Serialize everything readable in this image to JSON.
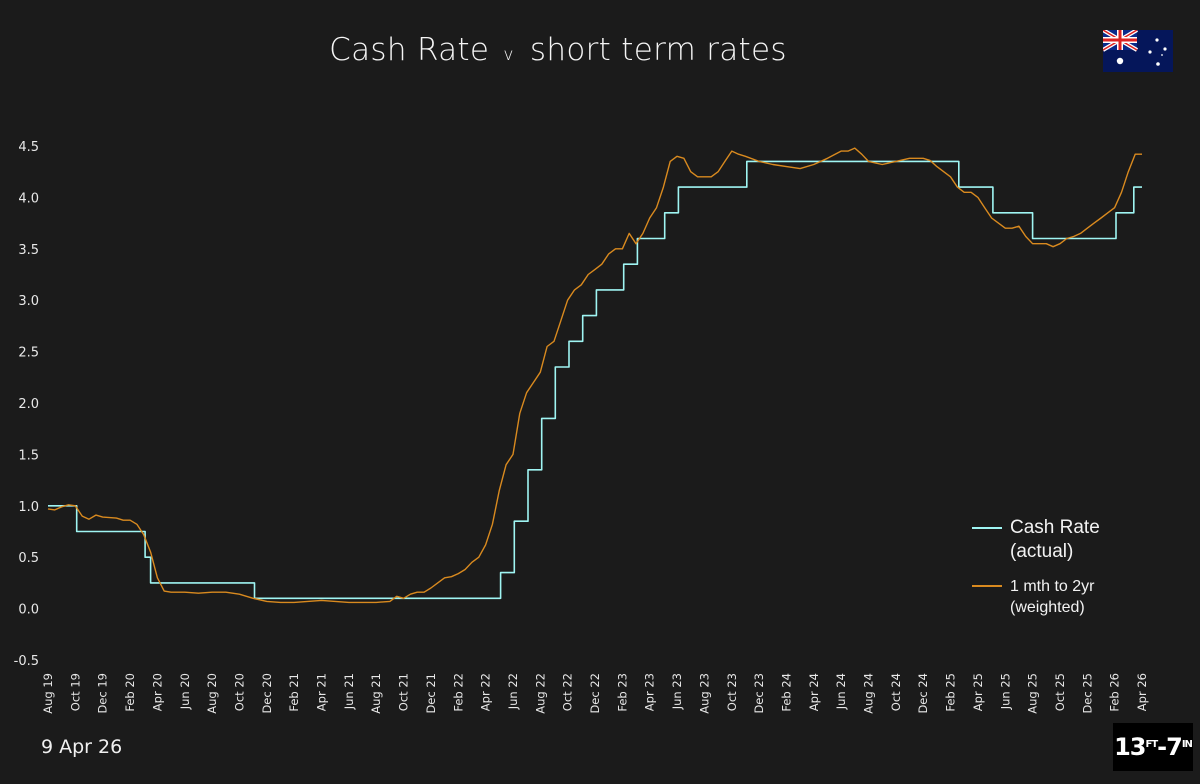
{
  "title": {
    "main": "Cash Rate",
    "connector": "v",
    "rest": "short term rates"
  },
  "date_label": "9 Apr 26",
  "logo": {
    "a": "13",
    "ft": "FT",
    "dash": "-",
    "b": "7",
    "in": "IN"
  },
  "flag": {
    "icon": "australian-flag-icon"
  },
  "colors": {
    "background": "#1b1b1b",
    "cash": "#9ff5f3",
    "rates": "#d98a1f",
    "text": "#f2f2f2"
  },
  "legend": {
    "cash_line1": "Cash Rate",
    "cash_line2": "(actual)",
    "rate_line1": "1 mth to 2yr",
    "rate_line2": "(weighted)"
  },
  "chart_data": {
    "type": "line",
    "title": "Cash Rate v short term rates",
    "xlabel": "",
    "ylabel": "",
    "ylim": [
      -0.5,
      4.5
    ],
    "yticks": [
      "4.5",
      "4.0",
      "3.5",
      "3.0",
      "2.5",
      "2.0",
      "1.5",
      "1.0",
      "0.5",
      "0.0",
      "-0.5"
    ],
    "ytick_values": [
      4.5,
      4.0,
      3.5,
      3.0,
      2.5,
      2.0,
      1.5,
      1.0,
      0.5,
      0.0,
      -0.5
    ],
    "xlim": [
      0,
      80
    ],
    "xticks": [
      "Aug 19",
      "Oct 19",
      "Dec 19",
      "Feb 20",
      "Apr 20",
      "Jun 20",
      "Aug 20",
      "Oct 20",
      "Dec 20",
      "Feb 21",
      "Apr 21",
      "Jun 21",
      "Aug 21",
      "Oct 21",
      "Dec 21",
      "Feb 22",
      "Apr 22",
      "Jun 22",
      "Aug 22",
      "Oct 22",
      "Dec 22",
      "Feb 23",
      "Apr 23",
      "Jun 23",
      "Aug 23",
      "Oct 23",
      "Dec 23",
      "Feb 24",
      "Apr 24",
      "Jun 24",
      "Aug 24",
      "Oct 24",
      "Dec 24",
      "Feb 25",
      "Apr 25",
      "Jun 25",
      "Aug 25",
      "Oct 25",
      "Dec 25",
      "Feb 26",
      "Apr 26"
    ],
    "x_unit": "months since Aug 2019",
    "legend_position": "bottom-right",
    "grid": false,
    "series": [
      {
        "name": "Cash Rate (actual)",
        "style": "step",
        "points": [
          [
            0,
            1.0
          ],
          [
            2.1,
            1.0
          ],
          [
            2.1,
            0.75
          ],
          [
            7.1,
            0.75
          ],
          [
            7.1,
            0.5
          ],
          [
            7.5,
            0.5
          ],
          [
            7.5,
            0.25
          ],
          [
            15.1,
            0.25
          ],
          [
            15.1,
            0.1
          ],
          [
            33.1,
            0.1
          ],
          [
            33.1,
            0.35
          ],
          [
            34.1,
            0.35
          ],
          [
            34.1,
            0.85
          ],
          [
            35.1,
            0.85
          ],
          [
            35.1,
            1.35
          ],
          [
            36.1,
            1.35
          ],
          [
            36.1,
            1.85
          ],
          [
            37.1,
            1.85
          ],
          [
            37.1,
            2.35
          ],
          [
            38.1,
            2.35
          ],
          [
            38.1,
            2.6
          ],
          [
            39.1,
            2.6
          ],
          [
            39.1,
            2.85
          ],
          [
            40.1,
            2.85
          ],
          [
            40.1,
            3.1
          ],
          [
            42.1,
            3.1
          ],
          [
            42.1,
            3.35
          ],
          [
            43.1,
            3.35
          ],
          [
            43.1,
            3.6
          ],
          [
            45.1,
            3.6
          ],
          [
            45.1,
            3.85
          ],
          [
            46.1,
            3.85
          ],
          [
            46.1,
            4.1
          ],
          [
            51.1,
            4.1
          ],
          [
            51.1,
            4.35
          ],
          [
            66.6,
            4.35
          ],
          [
            66.6,
            4.1
          ],
          [
            69.1,
            4.1
          ],
          [
            69.1,
            3.85
          ],
          [
            72.0,
            3.85
          ],
          [
            72.0,
            3.6
          ],
          [
            78.1,
            3.6
          ],
          [
            78.1,
            3.85
          ],
          [
            79.4,
            3.85
          ],
          [
            79.4,
            4.1
          ],
          [
            80,
            4.1
          ]
        ]
      },
      {
        "name": "1 mth to 2yr (weighted)",
        "style": "line",
        "points": [
          [
            0,
            0.97
          ],
          [
            0.5,
            0.96
          ],
          [
            1,
            0.99
          ],
          [
            1.5,
            1.01
          ],
          [
            2,
            1.0
          ],
          [
            2.5,
            0.9
          ],
          [
            3,
            0.87
          ],
          [
            3.5,
            0.91
          ],
          [
            4,
            0.89
          ],
          [
            5,
            0.88
          ],
          [
            5.5,
            0.86
          ],
          [
            6,
            0.86
          ],
          [
            6.5,
            0.82
          ],
          [
            7,
            0.72
          ],
          [
            7.5,
            0.55
          ],
          [
            8,
            0.3
          ],
          [
            8.5,
            0.17
          ],
          [
            9,
            0.16
          ],
          [
            10,
            0.16
          ],
          [
            11,
            0.15
          ],
          [
            12,
            0.16
          ],
          [
            13,
            0.16
          ],
          [
            14,
            0.14
          ],
          [
            15,
            0.1
          ],
          [
            16,
            0.07
          ],
          [
            17,
            0.06
          ],
          [
            18,
            0.06
          ],
          [
            19,
            0.07
          ],
          [
            20,
            0.08
          ],
          [
            21,
            0.07
          ],
          [
            22,
            0.06
          ],
          [
            23,
            0.06
          ],
          [
            24,
            0.06
          ],
          [
            25,
            0.07
          ],
          [
            25.5,
            0.12
          ],
          [
            26,
            0.1
          ],
          [
            26.5,
            0.14
          ],
          [
            27,
            0.16
          ],
          [
            27.5,
            0.16
          ],
          [
            28,
            0.2
          ],
          [
            28.5,
            0.25
          ],
          [
            29,
            0.3
          ],
          [
            29.5,
            0.31
          ],
          [
            30,
            0.34
          ],
          [
            30.5,
            0.38
          ],
          [
            31,
            0.45
          ],
          [
            31.5,
            0.5
          ],
          [
            32,
            0.62
          ],
          [
            32.5,
            0.82
          ],
          [
            33,
            1.15
          ],
          [
            33.5,
            1.4
          ],
          [
            34,
            1.5
          ],
          [
            34.5,
            1.9
          ],
          [
            35,
            2.1
          ],
          [
            35.5,
            2.2
          ],
          [
            36,
            2.3
          ],
          [
            36.5,
            2.55
          ],
          [
            37,
            2.6
          ],
          [
            37.5,
            2.8
          ],
          [
            38,
            3.0
          ],
          [
            38.5,
            3.1
          ],
          [
            39,
            3.15
          ],
          [
            39.5,
            3.25
          ],
          [
            40,
            3.3
          ],
          [
            40.5,
            3.35
          ],
          [
            41,
            3.45
          ],
          [
            41.5,
            3.5
          ],
          [
            42,
            3.5
          ],
          [
            42.5,
            3.65
          ],
          [
            43,
            3.55
          ],
          [
            43.5,
            3.65
          ],
          [
            44,
            3.8
          ],
          [
            44.5,
            3.9
          ],
          [
            45,
            4.1
          ],
          [
            45.5,
            4.35
          ],
          [
            46,
            4.4
          ],
          [
            46.5,
            4.38
          ],
          [
            47,
            4.25
          ],
          [
            47.5,
            4.2
          ],
          [
            48,
            4.2
          ],
          [
            48.5,
            4.2
          ],
          [
            49,
            4.25
          ],
          [
            49.5,
            4.35
          ],
          [
            50,
            4.45
          ],
          [
            50.5,
            4.42
          ],
          [
            51,
            4.4
          ],
          [
            52,
            4.35
          ],
          [
            53,
            4.32
          ],
          [
            54,
            4.3
          ],
          [
            55,
            4.28
          ],
          [
            56,
            4.32
          ],
          [
            57,
            4.38
          ],
          [
            58,
            4.45
          ],
          [
            58.5,
            4.45
          ],
          [
            59,
            4.48
          ],
          [
            59.5,
            4.42
          ],
          [
            60,
            4.35
          ],
          [
            61,
            4.32
          ],
          [
            62,
            4.35
          ],
          [
            63,
            4.38
          ],
          [
            64,
            4.38
          ],
          [
            64.5,
            4.36
          ],
          [
            65,
            4.3
          ],
          [
            65.5,
            4.25
          ],
          [
            66,
            4.2
          ],
          [
            66.5,
            4.1
          ],
          [
            67,
            4.05
          ],
          [
            67.5,
            4.05
          ],
          [
            68,
            4.0
          ],
          [
            68.5,
            3.9
          ],
          [
            69,
            3.8
          ],
          [
            69.5,
            3.75
          ],
          [
            70,
            3.7
          ],
          [
            70.5,
            3.7
          ],
          [
            71,
            3.72
          ],
          [
            71.5,
            3.62
          ],
          [
            72,
            3.55
          ],
          [
            72.5,
            3.55
          ],
          [
            73,
            3.55
          ],
          [
            73.5,
            3.52
          ],
          [
            74,
            3.55
          ],
          [
            74.5,
            3.6
          ],
          [
            75,
            3.62
          ],
          [
            75.5,
            3.65
          ],
          [
            76,
            3.7
          ],
          [
            76.5,
            3.75
          ],
          [
            77,
            3.8
          ],
          [
            77.5,
            3.85
          ],
          [
            78,
            3.9
          ],
          [
            78.5,
            4.05
          ],
          [
            79,
            4.25
          ],
          [
            79.5,
            4.42
          ],
          [
            80,
            4.42
          ]
        ]
      }
    ]
  }
}
